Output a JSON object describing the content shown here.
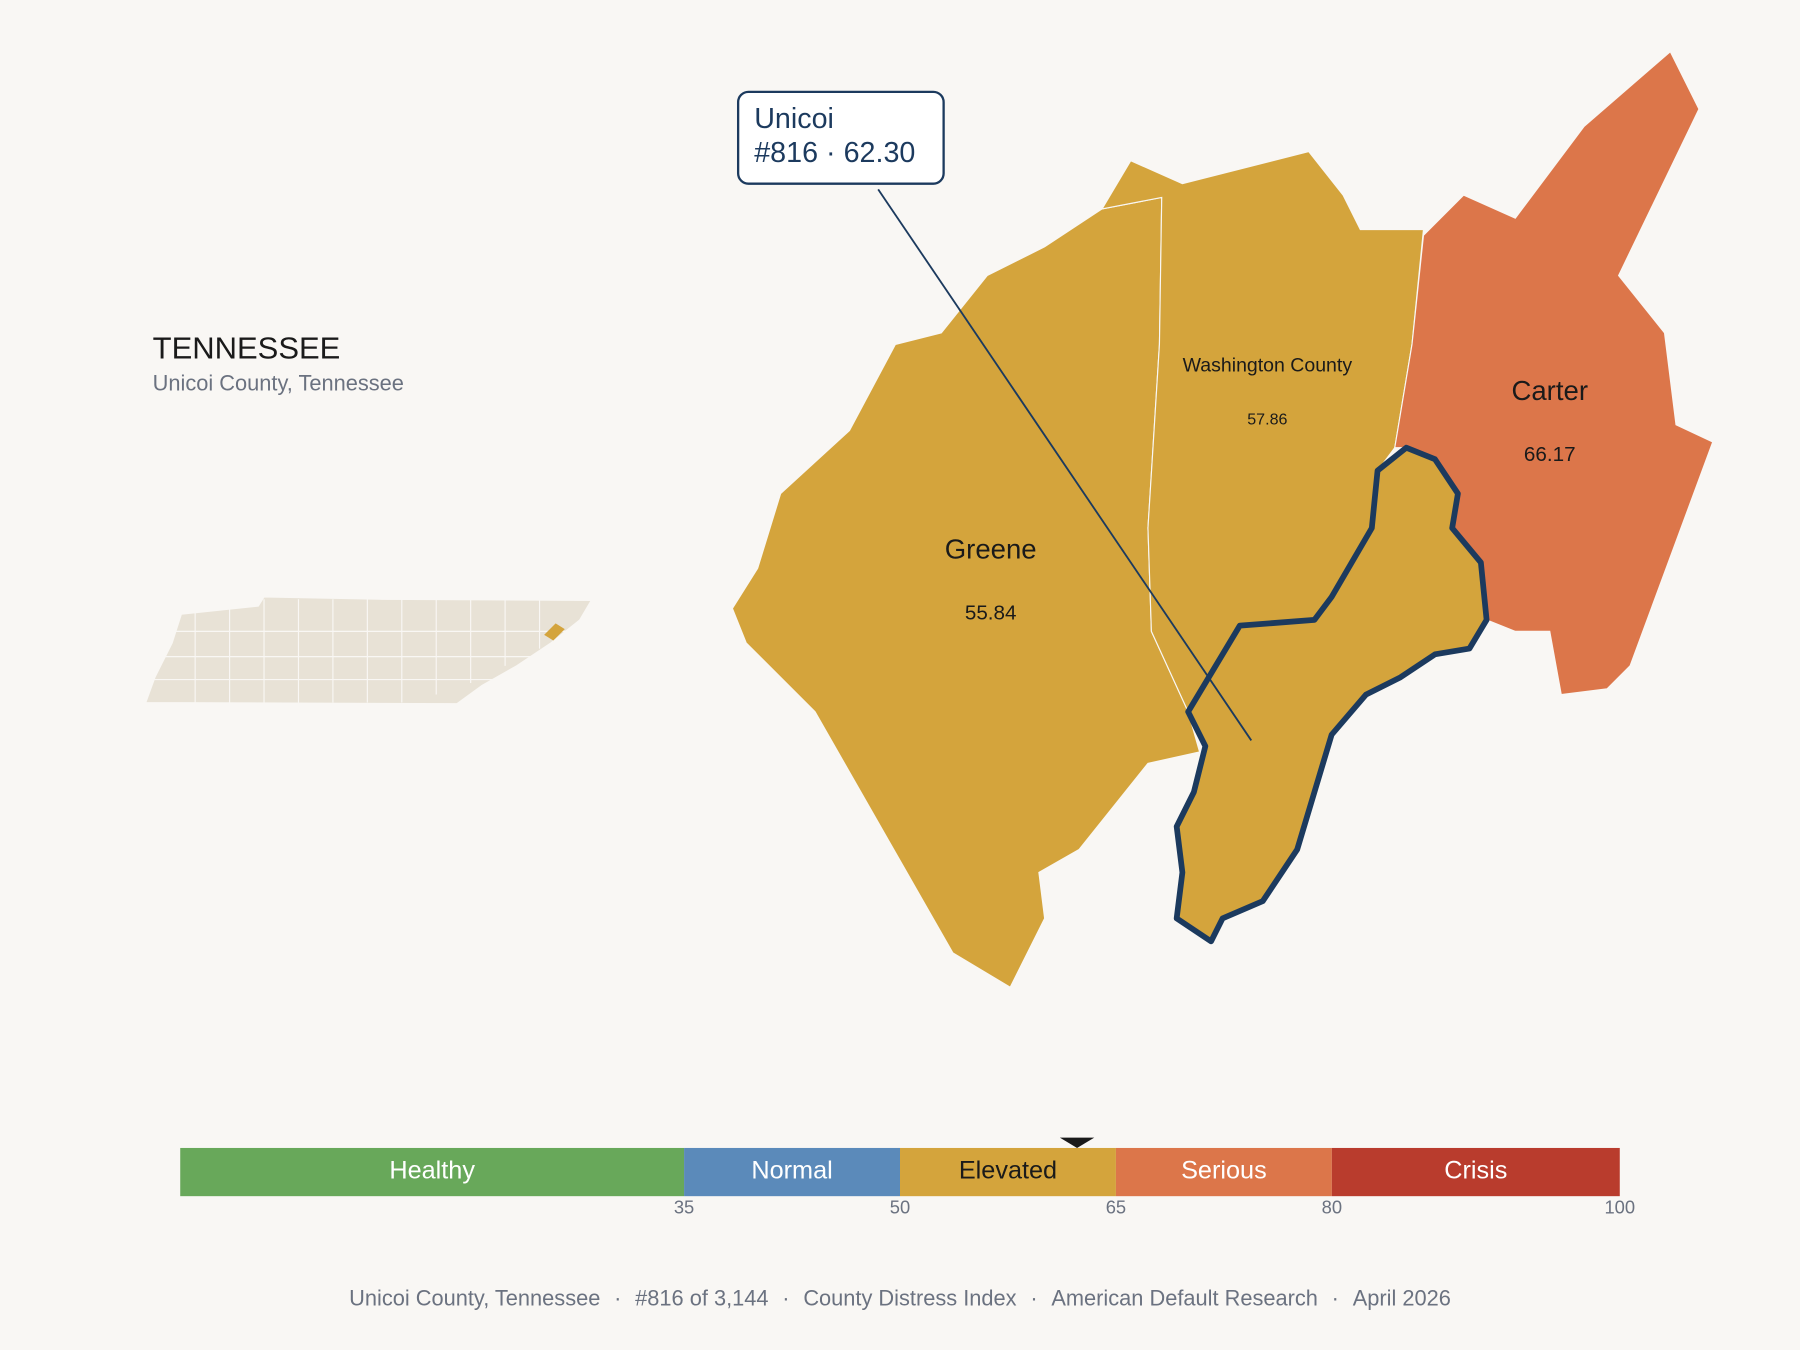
{
  "header": {
    "title": "TENNESSEE",
    "subtitle": "Unicoi County, Tennessee"
  },
  "counties": [
    {
      "name": "Greene",
      "value": 55.84,
      "color": "#d4a43c"
    },
    {
      "name": "Washington County",
      "value": 57.86,
      "color": "#d4a43c"
    },
    {
      "name": "Carter",
      "value": 66.17,
      "color": "#dc764a"
    }
  ],
  "callout": {
    "name": "Unicoi",
    "rank": "#816",
    "separator": "·",
    "score": {
      "value": 62.3,
      "label": "62.30"
    },
    "color": "#d4a43c"
  },
  "scale": {
    "range": [
      0,
      100
    ],
    "bands": [
      {
        "label": "Healthy",
        "upper": 35,
        "color": "#68a85a"
      },
      {
        "label": "Normal",
        "upper": 50,
        "color": "#5b8aba"
      },
      {
        "label": "Elevated",
        "upper": 65,
        "color": "#d4a43c"
      },
      {
        "label": "Serious",
        "upper": 80,
        "color": "#dc764a"
      },
      {
        "label": "Crisis",
        "upper": 100,
        "color": "#b93c2d"
      }
    ]
  },
  "footer": {
    "separator": "·",
    "items": [
      "Unicoi County, Tennessee",
      "#816 of 3,144",
      "County Distress Index",
      "American Default Research",
      "April 2026"
    ]
  }
}
